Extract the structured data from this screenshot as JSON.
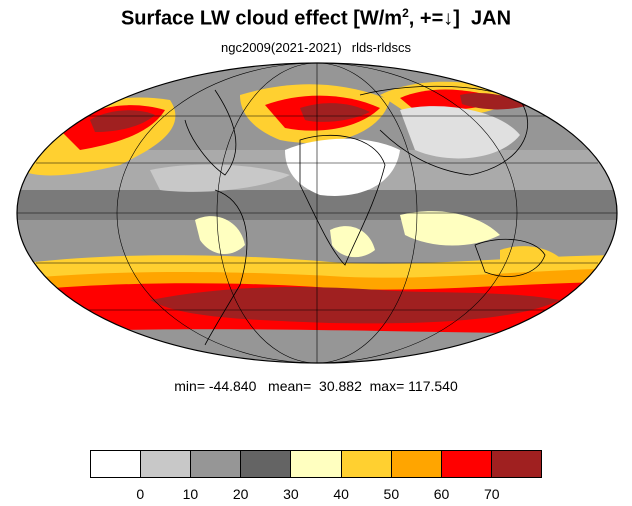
{
  "title": {
    "main": "Surface LW cloud effect [W/m",
    "superscript": "2",
    "rest": ", +=↓]",
    "month": "JAN"
  },
  "subtitle": {
    "case": "ngc2009(2021-2021)",
    "variable": "rlds-rldscs"
  },
  "stats": {
    "min_label": "min=",
    "min": "-44.840",
    "mean_label": "mean=",
    "mean": "30.882",
    "max_label": "max=",
    "max": "117.540"
  },
  "legend": {
    "colors": [
      "#ffffff",
      "#c8c8c8",
      "#969696",
      "#646464",
      "#ffffc0",
      "#ffd030",
      "#ffa500",
      "#ff0000",
      "#a02020"
    ],
    "ticks": [
      "0",
      "10",
      "20",
      "30",
      "40",
      "50",
      "60",
      "70"
    ]
  }
}
